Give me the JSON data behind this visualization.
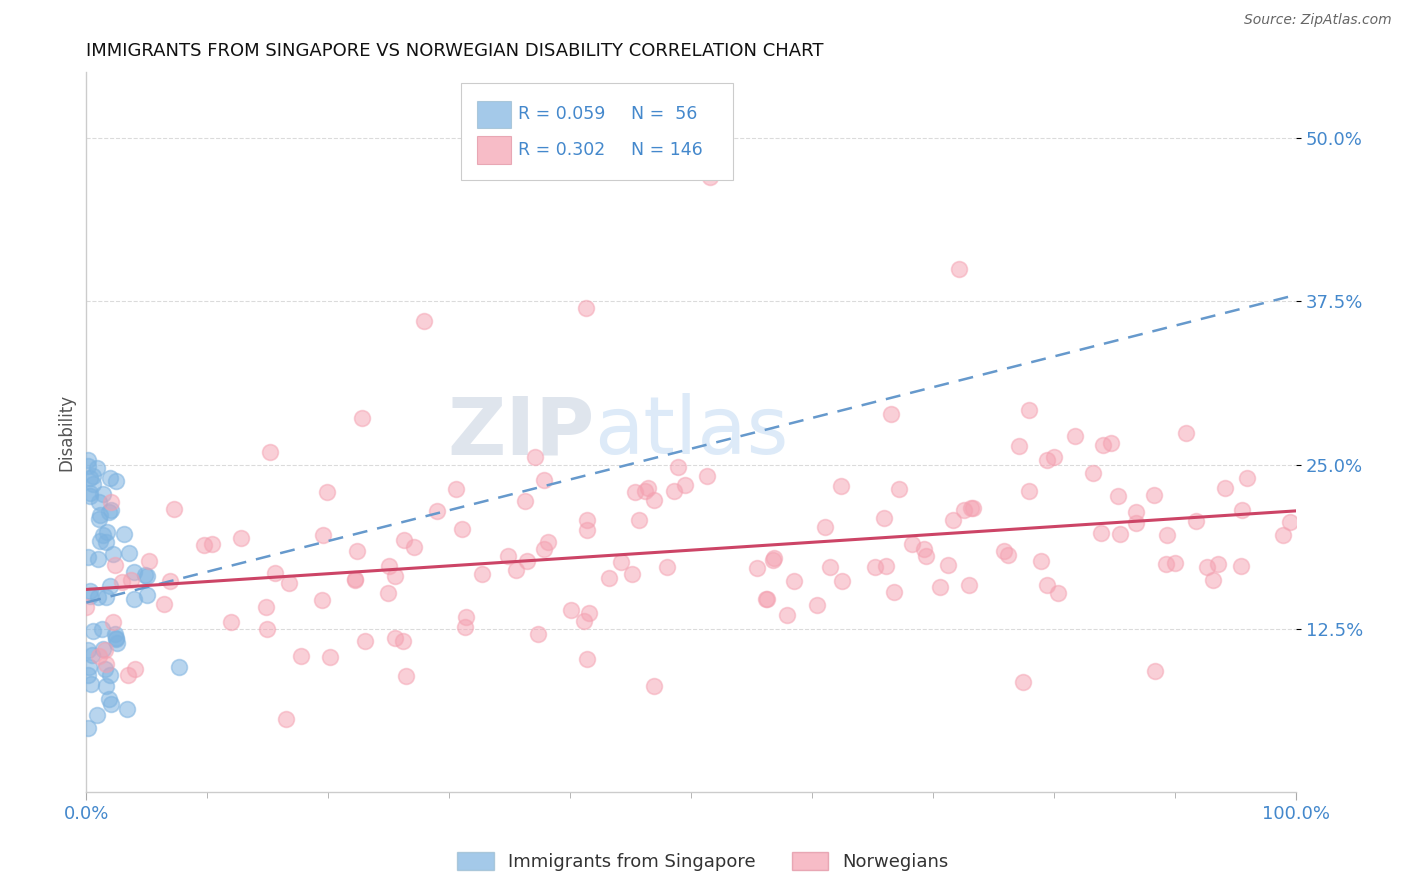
{
  "title": "IMMIGRANTS FROM SINGAPORE VS NORWEGIAN DISABILITY CORRELATION CHART",
  "source": "Source: ZipAtlas.com",
  "ylabel": "Disability",
  "xlim": [
    0.0,
    1.0
  ],
  "ylim": [
    0.0,
    0.55
  ],
  "yticks": [
    0.125,
    0.25,
    0.375,
    0.5
  ],
  "ytick_labels": [
    "12.5%",
    "25.0%",
    "37.5%",
    "50.0%"
  ],
  "xticks": [
    0.0,
    1.0
  ],
  "xtick_labels": [
    "0.0%",
    "100.0%"
  ],
  "blue_color": "#7EB3E0",
  "pink_color": "#F4A0B0",
  "legend_text_color": "#4488CC",
  "legend_label_blue": "Immigrants from Singapore",
  "legend_label_pink": "Norwegians",
  "watermark": "ZIPatlas",
  "watermark_color": "#C8D8EE",
  "background_color": "#FFFFFF",
  "grid_color": "#CCCCCC",
  "blue_trend_y_start": 0.145,
  "blue_trend_y_end": 0.38,
  "pink_trend_y_start": 0.155,
  "pink_trend_y_end": 0.215,
  "title_fontsize": 13,
  "tick_fontsize": 13,
  "ylabel_fontsize": 12
}
